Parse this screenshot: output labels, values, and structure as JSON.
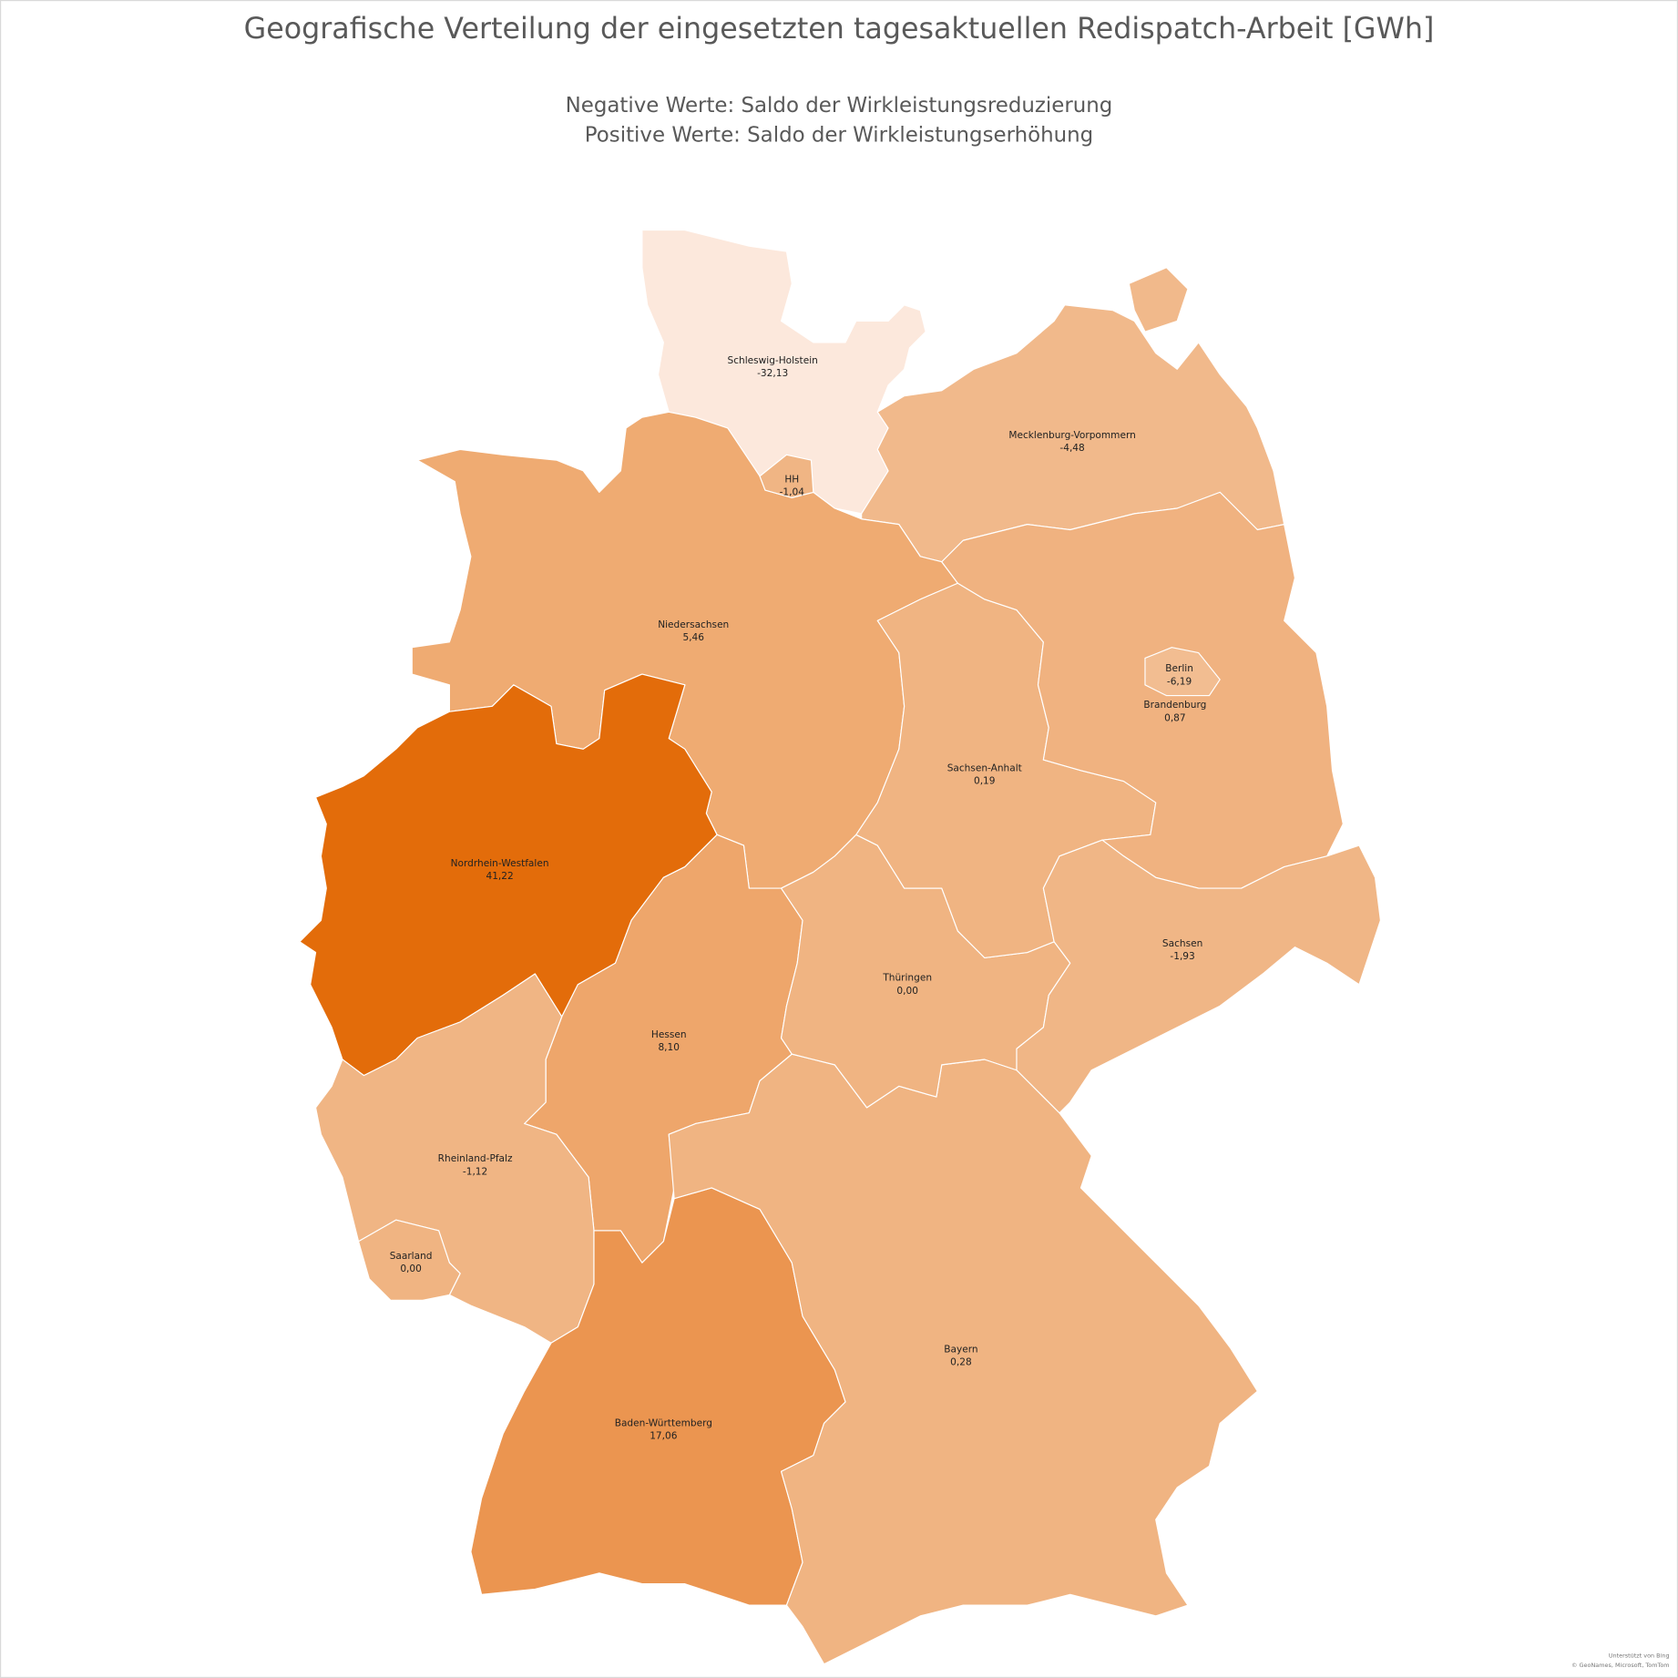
{
  "map": {
    "title": "Geografische Verteilung der eingesetzten tagesaktuellen Redispatch-Arbeit [GWh]",
    "subtitle_lines": [
      "Negative Werte: Saldo der Wirkleistungsreduzierung",
      "Positive Werte: Saldo der Wirkleistungserhöhung"
    ],
    "regions": [
      {
        "name": "Schleswig-Holstein",
        "value": -32.13,
        "value_label": "-32,13",
        "color": "#fce8dc"
      },
      {
        "name": "Mecklenburg-Vorpommern",
        "value": -4.48,
        "value_label": "-4,48",
        "color": "#f1b98b"
      },
      {
        "name": "Niedersachsen",
        "value": 5.46,
        "value_label": "5,46",
        "color": "#efab72"
      },
      {
        "name": "Nordrhein-Westfalen",
        "value": 41.22,
        "value_label": "41,22",
        "color": "#e36c0a"
      },
      {
        "name": "Hessen",
        "value": 8.1,
        "value_label": "8,10",
        "color": "#eea66b"
      },
      {
        "name": "Rheinland-Pfalz",
        "value": -1.12,
        "value_label": "-1,12",
        "color": "#f0b584"
      },
      {
        "name": "Saarland",
        "value": 0.0,
        "value_label": "0,00",
        "color": "#f0b482"
      },
      {
        "name": "Baden-Württemberg",
        "value": 17.06,
        "value_label": "17,06",
        "color": "#eb9550"
      },
      {
        "name": "Bayern",
        "value": 0.28,
        "value_label": "0,28",
        "color": "#f0b482"
      },
      {
        "name": "Thüringen",
        "value": 0.0,
        "value_label": "0,00",
        "color": "#f0b482"
      },
      {
        "name": "Sachsen-Anhalt",
        "value": 0.19,
        "value_label": "0,19",
        "color": "#f0b482"
      },
      {
        "name": "Brandenburg",
        "value": 0.87,
        "value_label": "0,87",
        "color": "#f0b280"
      },
      {
        "name": "Sachsen",
        "value": -1.93,
        "value_label": "-1,93",
        "color": "#f0b686"
      },
      {
        "name": "HH",
        "value": -1.04,
        "value_label": "-1,04",
        "color": "#f0b584"
      },
      {
        "name": "Berlin",
        "value": -6.19,
        "value_label": "-6,19",
        "color": "#f2bd91"
      }
    ],
    "credits": [
      "Unterstützt von Bing",
      "© GeoNames, Microsoft, TomTom"
    ]
  }
}
